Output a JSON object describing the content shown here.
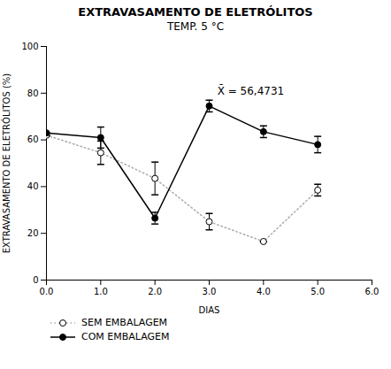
{
  "chart_data": {
    "type": "line",
    "title": "EXTRAVASAMENTO DE ELETRÓLITOS",
    "subtitle": "TEMP. 5 °C",
    "x_label": "DIAS",
    "y_label": "EXTRAVASAMENTO DE ELETRÓLITOS (%)",
    "x": [
      0,
      1,
      2,
      3,
      4,
      5
    ],
    "series": [
      {
        "name": "SEM EMBALAGEM",
        "color": "#aaaaaa",
        "line_style": "dotted",
        "marker": "open",
        "values": [
          62.0,
          54.5,
          43.5,
          25.0,
          16.5,
          38.5
        ],
        "errors": [
          0,
          5.0,
          7.0,
          3.5,
          0,
          2.5
        ]
      },
      {
        "name": "COM EMBALAGEM",
        "color": "#000000",
        "line_style": "solid",
        "marker": "filled",
        "values": [
          63.0,
          61.0,
          26.5,
          74.5,
          63.5,
          58.0
        ],
        "errors": [
          0,
          4.5,
          2.5,
          2.5,
          2.5,
          3.5
        ]
      }
    ],
    "annotations": [
      {
        "text": "X̄ = 56,4731",
        "x": 3.15,
        "y": 81.0
      }
    ],
    "xlim": [
      0,
      6
    ],
    "ylim": [
      0,
      100
    ],
    "xticks": [
      0,
      1,
      2,
      3,
      4,
      5,
      6
    ],
    "yticks": [
      0,
      20,
      40,
      60,
      80,
      100
    ],
    "grid": false,
    "legend": "bottom"
  }
}
